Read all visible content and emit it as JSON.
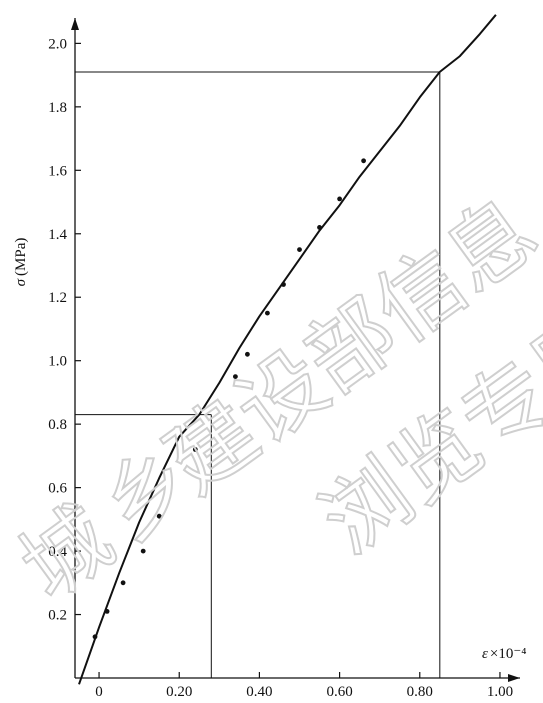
{
  "chart_data": {
    "type": "line",
    "title": "",
    "ylabel_symbol": "σ",
    "ylabel_unit": "(MPa)",
    "xlabel_symbol": "ε",
    "xlabel_unit": "×10⁻⁴",
    "xlim": [
      -0.06,
      1.05
    ],
    "ylim": [
      0.0,
      2.08
    ],
    "x_ticks": [
      "0",
      "0.20",
      "0.40",
      "0.60",
      "0.80",
      "1.00"
    ],
    "y_ticks": [
      "0.2",
      "0.4",
      "0.6",
      "0.8",
      "1.0",
      "1.2",
      "1.4",
      "1.6",
      "1.8",
      "2.0"
    ],
    "series": [
      {
        "kind": "fitted-curve",
        "x": [
          -0.05,
          0.0,
          0.05,
          0.1,
          0.15,
          0.2,
          0.25,
          0.3,
          0.35,
          0.4,
          0.45,
          0.5,
          0.55,
          0.6,
          0.65,
          0.7,
          0.75,
          0.8,
          0.85,
          0.9,
          0.95,
          0.99
        ],
        "y": [
          -0.02,
          0.16,
          0.33,
          0.49,
          0.63,
          0.76,
          0.83,
          0.93,
          1.04,
          1.14,
          1.23,
          1.32,
          1.41,
          1.49,
          1.58,
          1.66,
          1.74,
          1.83,
          1.91,
          1.96,
          2.03,
          2.09
        ]
      },
      {
        "kind": "measured-points",
        "x": [
          -0.01,
          0.02,
          0.06,
          0.11,
          0.15,
          0.24,
          0.34,
          0.37,
          0.42,
          0.46,
          0.5,
          0.55,
          0.6,
          0.66
        ],
        "y": [
          0.13,
          0.21,
          0.3,
          0.4,
          0.51,
          0.72,
          0.95,
          1.02,
          1.15,
          1.24,
          1.35,
          1.42,
          1.51,
          1.63
        ]
      }
    ],
    "reference_lines": [
      {
        "x": 0.28,
        "y": 0.83
      },
      {
        "x": 0.85,
        "y": 1.91
      }
    ]
  },
  "watermark": {
    "line1": "建设部信息",
    "line2": "乡",
    "line3": "浏览专用",
    "line4": "城"
  }
}
